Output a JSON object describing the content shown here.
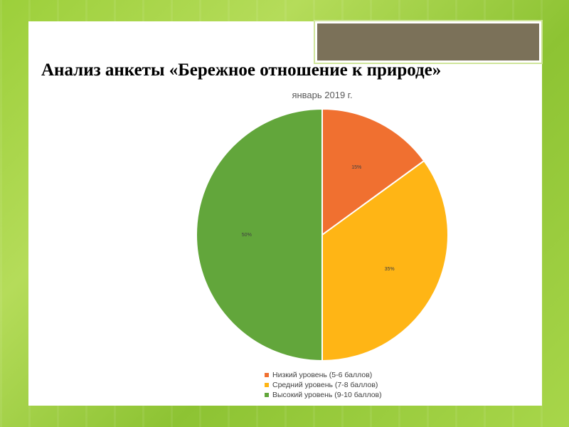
{
  "slide": {
    "title": "Анализ анкеты «Бережное отношение к природе»"
  },
  "chart_data": {
    "type": "pie",
    "title": "январь 2019 г.",
    "categories": [
      "Низкий уровень (5-6 баллов)",
      "Средний уровень (7-8 баллов)",
      "Высокий уровень (9-10 баллов)"
    ],
    "values": [
      15,
      35,
      50
    ],
    "labels": [
      "15%",
      "35%",
      "50%"
    ],
    "colors": [
      "#f07030",
      "#ffb515",
      "#62a63b"
    ],
    "legend": "bottom"
  }
}
